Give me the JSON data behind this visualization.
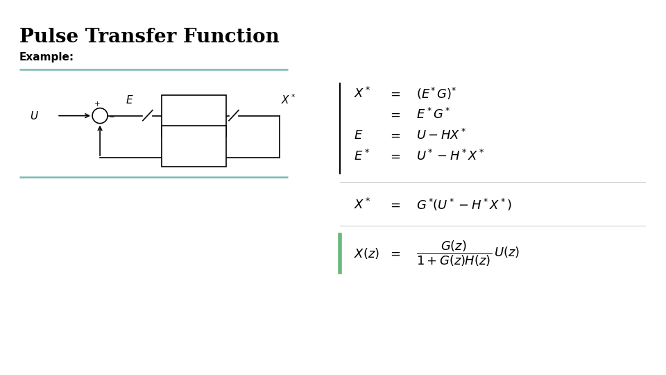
{
  "title": "Pulse Transfer Function",
  "subtitle": "Example:",
  "bg_color": "#ffffff",
  "title_fontsize": 20,
  "subtitle_fontsize": 11,
  "sep_color": "#7ab8b0",
  "accent_green": "#6ab87a"
}
